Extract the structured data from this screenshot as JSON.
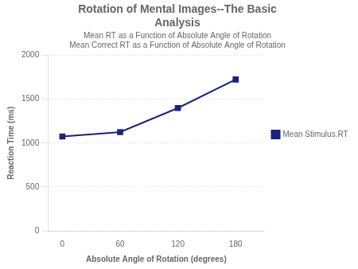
{
  "chart_data": {
    "type": "line",
    "title": "Rotation of Mental Images--The Basic\nAnalysis",
    "subtitle": "Mean RT as a Function of Absolute Angle of Rotation",
    "plot_title": "Mean Correct RT as a Function of Absolute Angle of Rotation",
    "x_label": "Absolute Angle of Rotation (degrees)",
    "y_label": "Reaction Time (ms)",
    "x": [
      0,
      60,
      120,
      180
    ],
    "series": [
      {
        "name": "Mean Stimulus.RT",
        "color": "#1a237e",
        "marker": "square",
        "values": [
          1075,
          1125,
          1400,
          1725
        ]
      }
    ],
    "xlim": [
      -15,
      210
    ],
    "ylim": [
      0,
      2000
    ],
    "xticks": [
      0,
      60,
      120,
      180
    ],
    "yticks": [
      0,
      500,
      1000,
      1500,
      2000
    ],
    "grid": "y",
    "legend": "right"
  }
}
